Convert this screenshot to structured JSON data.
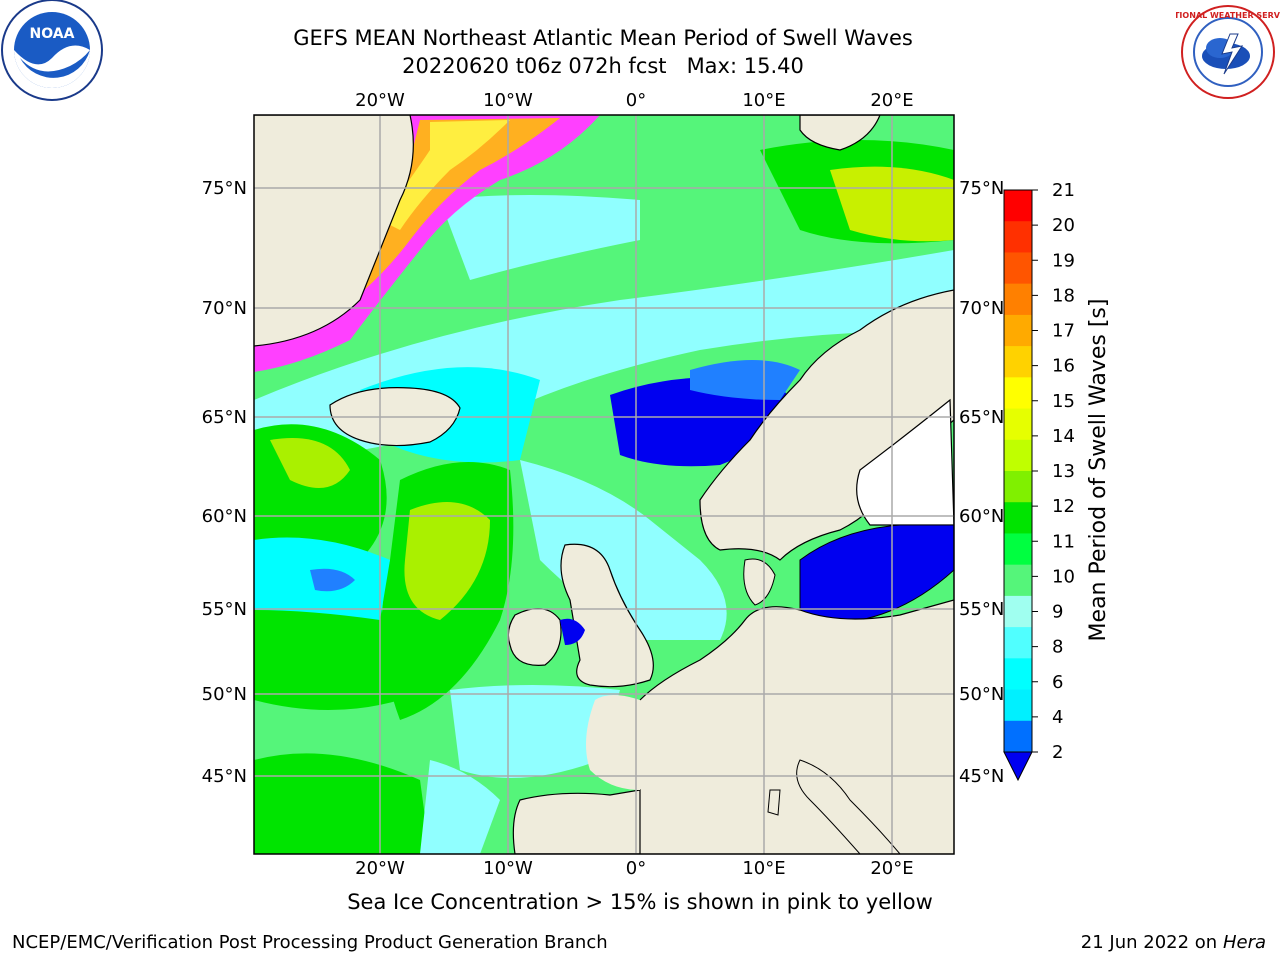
{
  "header": {
    "title_line1": "GEFS MEAN Northeast Atlantic Mean Period of Swell Waves",
    "title_line2": "20220620 t06z 072h fcst   Max: 15.40"
  },
  "caption": "Sea Ice Concentration > 15% is shown in pink to yellow",
  "footer": {
    "producer": "NCEP/EMC/Verification Post Processing Product Generation Branch",
    "date": "21 Jun 2022 on",
    "host": "Hera"
  },
  "map": {
    "lon_labels": [
      "20°W",
      "10°W",
      "0°",
      "10°E",
      "20°E"
    ],
    "lat_labels": [
      "75°N",
      "70°N",
      "65°N",
      "60°N",
      "55°N",
      "50°N",
      "45°N"
    ],
    "colors": {
      "land": "#efecdc",
      "ocean_deep": "#0000f0",
      "ocean_blue": "#2080ff",
      "ocean_cyan": "#00ffff",
      "ocean_lightcyan": "#90ffff",
      "ocean_lightgreen": "#55f57a",
      "ocean_green": "#00e400",
      "ocean_yellowgreen": "#aaf000",
      "ocean_yellow": "#e6f52a",
      "ice_pink": "#ff40ff",
      "ice_orange": "#ffb020",
      "ice_yellow": "#ffee40",
      "grid": "#aaaaaa"
    }
  },
  "colorbar": {
    "label": "Mean Period of Swell Waves [s]",
    "ticks": [
      "21",
      "20",
      "19",
      "18",
      "17",
      "16",
      "15",
      "14",
      "13",
      "12",
      "11",
      "10",
      "9",
      "8",
      "6",
      "4",
      "2"
    ],
    "colors": [
      "#ff0000",
      "#ff3000",
      "#ff5500",
      "#ff8000",
      "#ffaa00",
      "#ffd200",
      "#ffff00",
      "#e6ff00",
      "#c0ff00",
      "#80f000",
      "#00e400",
      "#00ff40",
      "#55f57a",
      "#a0fff0",
      "#50ffff",
      "#00ffff",
      "#00f0ff",
      "#0070ff",
      "#0000f0"
    ]
  },
  "logos": {
    "left_logo_text": "NOAA",
    "right_logo_text": "NATIONAL WEATHER SERVICE"
  }
}
